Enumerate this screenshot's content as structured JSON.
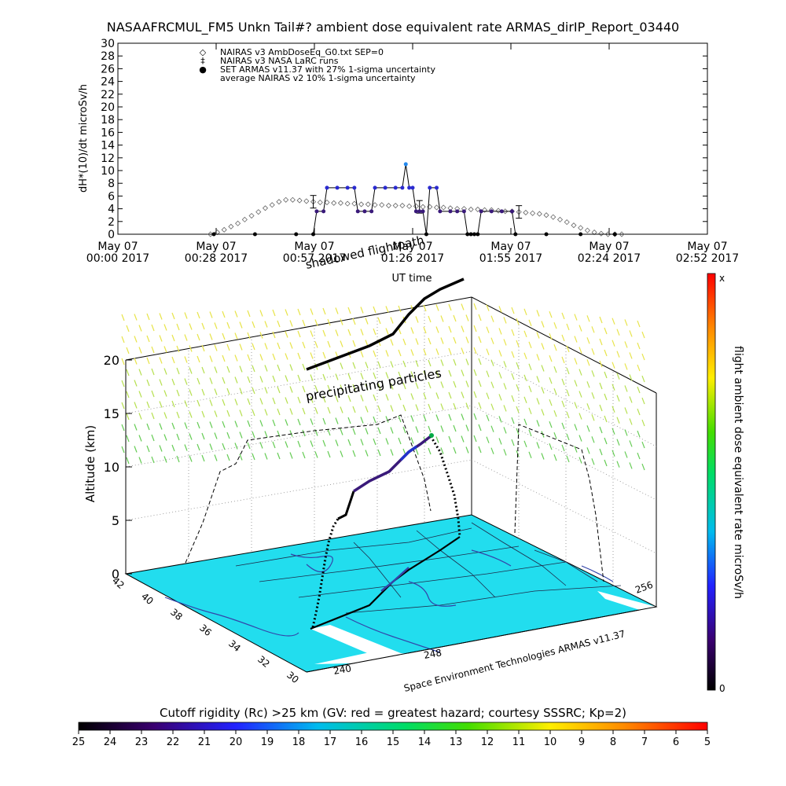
{
  "chart_data": [
    {
      "type": "scatter",
      "title": "NASAAFRCMUL_FM5 Unkn Tail#? ambient dose equivalent rate ARMAS_dirIP_Report_03440",
      "xlabel": "UT time",
      "ylabel": "dH*(10)/dt microSv/h",
      "ylim": [
        0,
        30
      ],
      "y_ticks": [
        "0",
        "2",
        "4",
        "6",
        "8",
        "10",
        "12",
        "14",
        "16",
        "18",
        "20",
        "22",
        "24",
        "26",
        "28",
        "30"
      ],
      "x_ticks": [
        {
          "top": "May 07",
          "bottom": "00:00 2017"
        },
        {
          "top": "May 07",
          "bottom": "00:28 2017"
        },
        {
          "top": "May 07",
          "bottom": "00:57 2017"
        },
        {
          "top": "May 07",
          "bottom": "01:26 2017"
        },
        {
          "top": "May 07",
          "bottom": "01:55 2017"
        },
        {
          "top": "May 07",
          "bottom": "02:24 2017"
        },
        {
          "top": "May 07",
          "bottom": "02:52 2017"
        }
      ],
      "legend_position": "top-left",
      "legend": [
        {
          "symbol": "◇",
          "label": "NAIRAS v3 AmbDoseEq_G0.txt SEP=0"
        },
        {
          "symbol": "‡",
          "label": "NAIRAS v3 NASA LaRC runs"
        },
        {
          "symbol": "●",
          "label": "SET ARMAS v11.37 with 27% 1-sigma uncertainty"
        },
        {
          "symbol": "",
          "label": "average NAIRAS v2 10% 1-sigma uncertainty"
        }
      ],
      "series": [
        {
          "name": "NAIRAS v3 AmbDoseEq_G0.txt SEP=0",
          "color": "#666666",
          "points": [
            [
              27,
              0
            ],
            [
              29,
              0.3
            ],
            [
              31,
              0.7
            ],
            [
              33,
              1.2
            ],
            [
              35,
              1.7
            ],
            [
              37,
              2.3
            ],
            [
              39,
              2.9
            ],
            [
              41,
              3.5
            ],
            [
              43,
              4.1
            ],
            [
              45,
              4.6
            ],
            [
              47,
              5.1
            ],
            [
              49,
              5.4
            ],
            [
              51,
              5.4
            ],
            [
              53,
              5.3
            ],
            [
              55,
              5.2
            ],
            [
              57,
              5.1
            ],
            [
              59,
              5.0
            ],
            [
              61,
              5.0
            ],
            [
              63,
              4.9
            ],
            [
              65,
              4.9
            ],
            [
              67,
              4.8
            ],
            [
              69,
              4.8
            ],
            [
              71,
              4.7
            ],
            [
              73,
              4.7
            ],
            [
              75,
              4.6
            ],
            [
              77,
              4.6
            ],
            [
              79,
              4.5
            ],
            [
              81,
              4.5
            ],
            [
              83,
              4.5
            ],
            [
              85,
              4.4
            ],
            [
              87,
              4.4
            ],
            [
              89,
              4.3
            ],
            [
              91,
              4.3
            ],
            [
              93,
              4.2
            ],
            [
              95,
              4.2
            ],
            [
              97,
              4.1
            ],
            [
              99,
              4.0
            ],
            [
              101,
              4.0
            ],
            [
              103,
              3.9
            ],
            [
              105,
              3.9
            ],
            [
              107,
              3.8
            ],
            [
              109,
              3.8
            ],
            [
              111,
              3.7
            ],
            [
              113,
              3.6
            ],
            [
              115,
              3.6
            ],
            [
              117,
              3.5
            ],
            [
              119,
              3.4
            ],
            [
              121,
              3.3
            ],
            [
              123,
              3.2
            ],
            [
              125,
              3.0
            ],
            [
              127,
              2.7
            ],
            [
              129,
              2.3
            ],
            [
              131,
              1.9
            ],
            [
              133,
              1.4
            ],
            [
              135,
              1.0
            ],
            [
              137,
              0.6
            ],
            [
              139,
              0.3
            ],
            [
              141,
              0.1
            ],
            [
              143,
              0.0
            ],
            [
              145,
              0.0
            ],
            [
              147,
              0.0
            ]
          ]
        },
        {
          "name": "NAIRAS v3 NASA LaRC runs",
          "color": "#000000",
          "points": [
            [
              57,
              5.1
            ],
            [
              88,
              4.3
            ],
            [
              117,
              3.5
            ]
          ]
        },
        {
          "name": "SET ARMAS v11.37 with 27% 1-sigma uncertainty",
          "color": "#3a1a7a",
          "points": [
            [
              28,
              0
            ],
            [
              40,
              0
            ],
            [
              52,
              0
            ],
            [
              57,
              0
            ],
            [
              58,
              3.6
            ],
            [
              60,
              3.6
            ],
            [
              61,
              7.3
            ],
            [
              64,
              7.3
            ],
            [
              67,
              7.3
            ],
            [
              69,
              7.3
            ],
            [
              70,
              3.6
            ],
            [
              72,
              3.6
            ],
            [
              74,
              3.6
            ],
            [
              75,
              7.3
            ],
            [
              78,
              7.3
            ],
            [
              81,
              7.3
            ],
            [
              83,
              7.3
            ],
            [
              84,
              11
            ],
            [
              85,
              7.3
            ],
            [
              86,
              7.3
            ],
            [
              87,
              3.6
            ],
            [
              88,
              3.6
            ],
            [
              89,
              3.6
            ],
            [
              90,
              0
            ],
            [
              91,
              7.3
            ],
            [
              93,
              7.3
            ],
            [
              94,
              3.6
            ],
            [
              97,
              3.6
            ],
            [
              99,
              3.6
            ],
            [
              101,
              3.6
            ],
            [
              102,
              0
            ],
            [
              103,
              0
            ],
            [
              104,
              0
            ],
            [
              105,
              0
            ],
            [
              106,
              3.6
            ],
            [
              109,
              3.6
            ],
            [
              112,
              3.6
            ],
            [
              115,
              3.6
            ],
            [
              116,
              0
            ],
            [
              125,
              0
            ],
            [
              135,
              0
            ],
            [
              145,
              0
            ]
          ]
        }
      ]
    },
    {
      "type": "scatter",
      "title": "",
      "ylabel": "Altitude (km)",
      "z_ticks": [
        "0",
        "5",
        "10",
        "15",
        "20"
      ],
      "lat_ticks": [
        "42",
        "40",
        "38",
        "36",
        "34",
        "32",
        "30"
      ],
      "lon_ticks_front": [
        "240",
        "248"
      ],
      "lon_ticks_right": [
        "240",
        "248",
        "256"
      ],
      "annotations": [
        "shadowed flightpath",
        "precipitating particles"
      ],
      "credit": "Space Environment Technologies ARMAS v11.37",
      "colorbar_right": {
        "label": "flight ambient dose equivalent rate microSv/h",
        "top": "x",
        "bottom": "0"
      },
      "colorbar_bottom": {
        "label": "Cutoff rigidity (Rc) >25 km (GV: red = greatest hazard; courtesy SSSRC; Kp=2)",
        "ticks": [
          "25",
          "24",
          "23",
          "22",
          "21",
          "20",
          "19",
          "18",
          "17",
          "16",
          "15",
          "14",
          "13",
          "12",
          "11",
          "10",
          "9",
          "8",
          "7",
          "6",
          "5"
        ]
      },
      "colors": {
        "ground": "#22ddee",
        "coast": "#3344aa",
        "grid": "#000000"
      }
    }
  ]
}
